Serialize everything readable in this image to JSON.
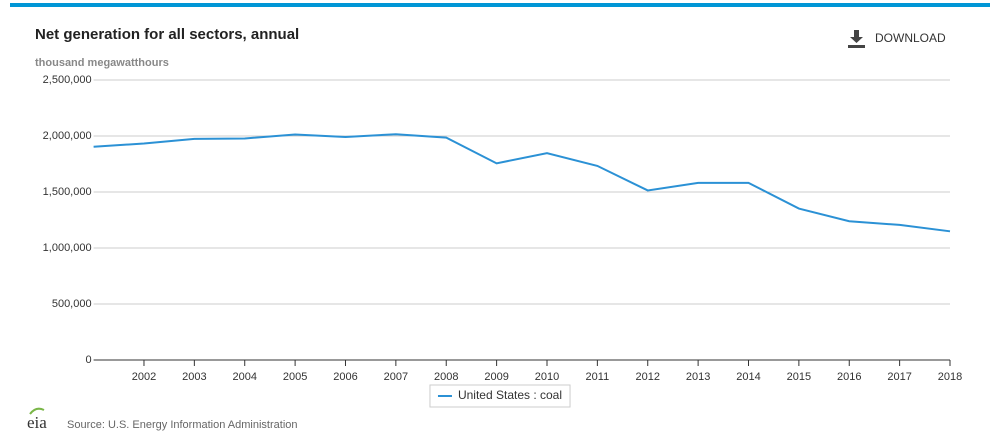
{
  "chart_data": {
    "type": "line",
    "title": "Net generation for all sectors, annual",
    "subtitle": "thousand megawatthours",
    "x": [
      2001,
      2002,
      2003,
      2004,
      2005,
      2006,
      2007,
      2008,
      2009,
      2010,
      2011,
      2012,
      2013,
      2014,
      2015,
      2016,
      2017,
      2018
    ],
    "xlim": [
      2001,
      2018
    ],
    "xticks": [
      2002,
      2003,
      2004,
      2005,
      2006,
      2007,
      2008,
      2009,
      2010,
      2011,
      2012,
      2013,
      2014,
      2015,
      2016,
      2017,
      2018
    ],
    "ylim": [
      0,
      2500000
    ],
    "yticks": [
      0,
      {
        "value": 500000,
        "label": "500,000"
      },
      {
        "value": 1000000,
        "label": "1,000,000"
      },
      {
        "value": 1500000,
        "label": "1,500,000"
      },
      {
        "value": 2000000,
        "label": "2,000,000"
      },
      {
        "value": 2500000,
        "label": "2,500,000"
      }
    ],
    "grid": true,
    "legend": "bottom",
    "series": [
      {
        "name": "United States : coal",
        "color": "#2b91d5",
        "values": [
          1904000,
          1933000,
          1974000,
          1978000,
          2013000,
          1991000,
          2016000,
          1986000,
          1756000,
          1847000,
          1733000,
          1514000,
          1581000,
          1582000,
          1352000,
          1239000,
          1206000,
          1149000
        ]
      }
    ]
  },
  "toolbar": {
    "download": "DOWNLOAD"
  },
  "footer": {
    "logo": "eia",
    "source": "Source: U.S. Energy Information Administration"
  }
}
